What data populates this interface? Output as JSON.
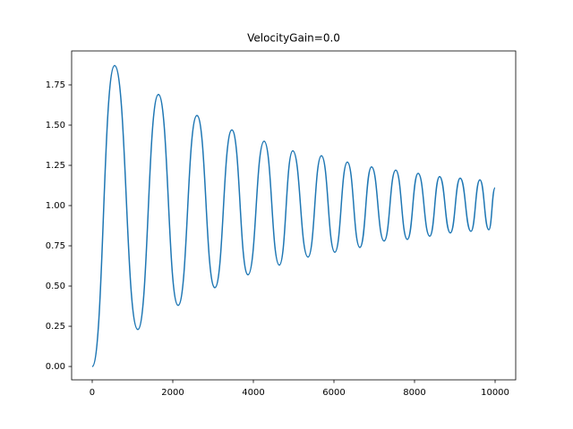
{
  "chart_data": {
    "type": "line",
    "title": "VelocityGain=0.0",
    "x": [
      0,
      556,
      1133,
      1644,
      2133,
      2600,
      3044,
      3467,
      3867,
      4267,
      4644,
      4978,
      5356,
      5689,
      6022,
      6333,
      6644,
      6933,
      7244,
      7533,
      7822,
      8089,
      8378,
      8622,
      8889,
      9133,
      9400,
      9622,
      9844,
      10000
    ],
    "series": [
      {
        "color": "#1f77b4",
        "values": [
          0,
          1.87,
          0.23,
          1.69,
          0.38,
          1.56,
          0.49,
          1.47,
          0.57,
          1.4,
          0.63,
          1.34,
          0.68,
          1.31,
          0.71,
          1.27,
          0.74,
          1.24,
          0.78,
          1.22,
          0.79,
          1.2,
          0.81,
          1.18,
          0.83,
          1.17,
          0.84,
          1.16,
          0.85,
          1.11
        ]
      }
    ],
    "xlim": [
      -511,
      10511
    ],
    "ylim": [
      -0.083,
      1.961
    ],
    "xticks": [
      0,
      2000,
      4000,
      6000,
      8000,
      10000
    ],
    "yticks": [
      {
        "value": 0,
        "label": "0.00"
      },
      {
        "value": 0.25,
        "label": "0.25"
      },
      {
        "value": 0.5,
        "label": "0.50"
      },
      {
        "value": 0.75,
        "label": "0.75"
      },
      {
        "value": 1,
        "label": "1.00"
      },
      {
        "value": 1.25,
        "label": "1.25"
      },
      {
        "value": 1.5,
        "label": "1.50"
      },
      {
        "value": 1.75,
        "label": "1.75"
      }
    ],
    "grid": false
  }
}
